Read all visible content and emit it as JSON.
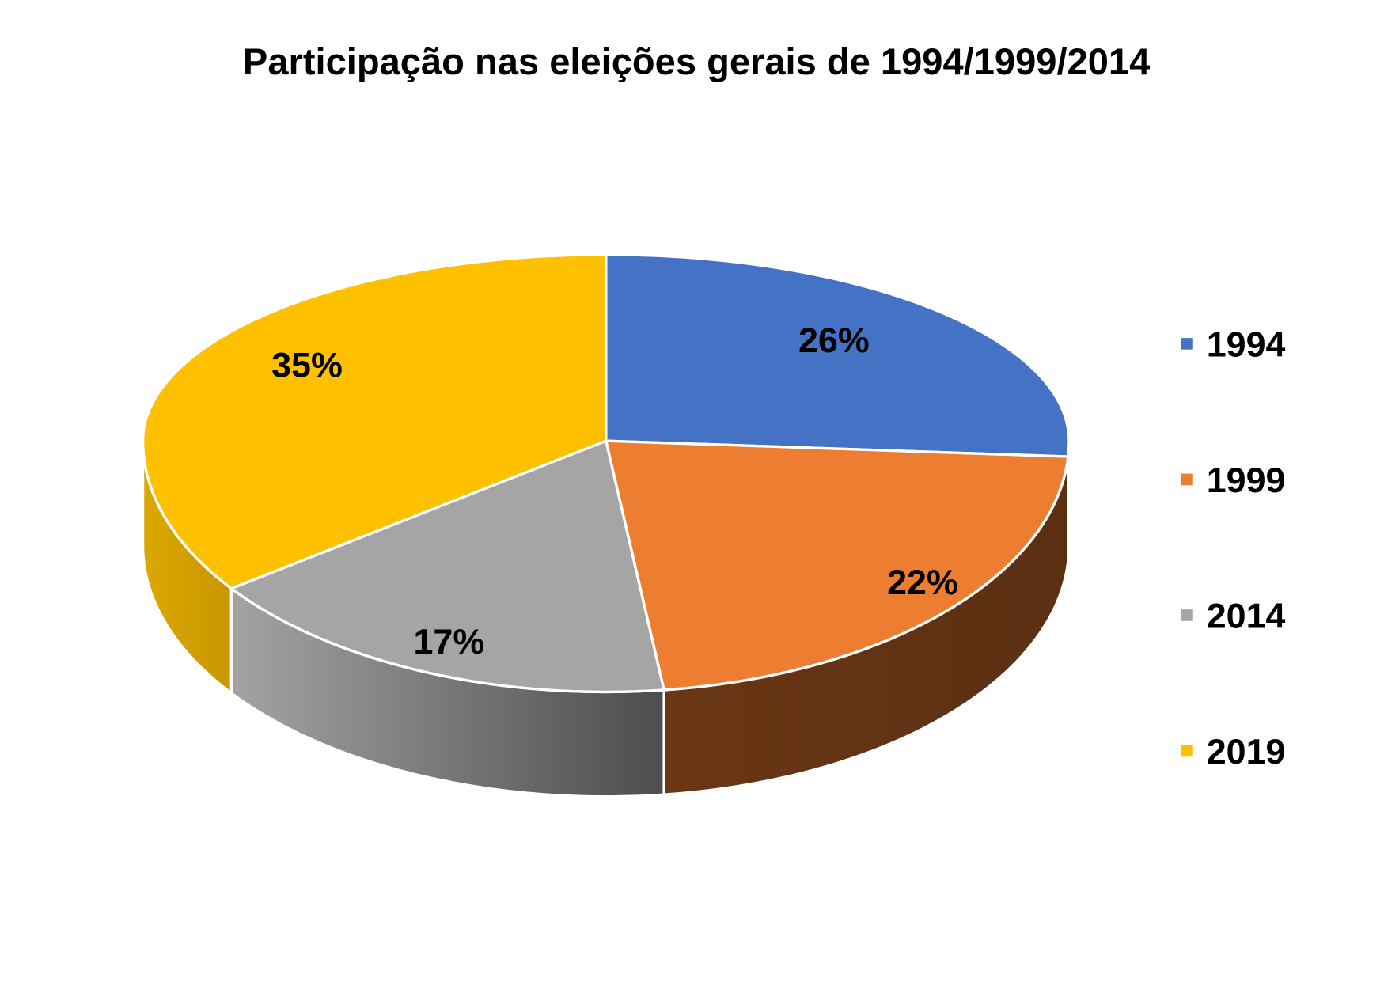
{
  "chart_data": {
    "type": "pie",
    "variant": "3d",
    "title": "Participação nas eleições gerais de 1994/1999/2014",
    "categories": [
      "1994",
      "1999",
      "2014",
      "2019"
    ],
    "values": [
      26,
      22,
      17,
      35
    ],
    "data_labels": [
      "26%",
      "22%",
      "17%",
      "35%"
    ],
    "colors": [
      "#4472C4",
      "#ED7D31",
      "#A5A5A5",
      "#FFC000"
    ],
    "legend_position": "right",
    "start_angle": "12 o'clock, clockwise"
  }
}
